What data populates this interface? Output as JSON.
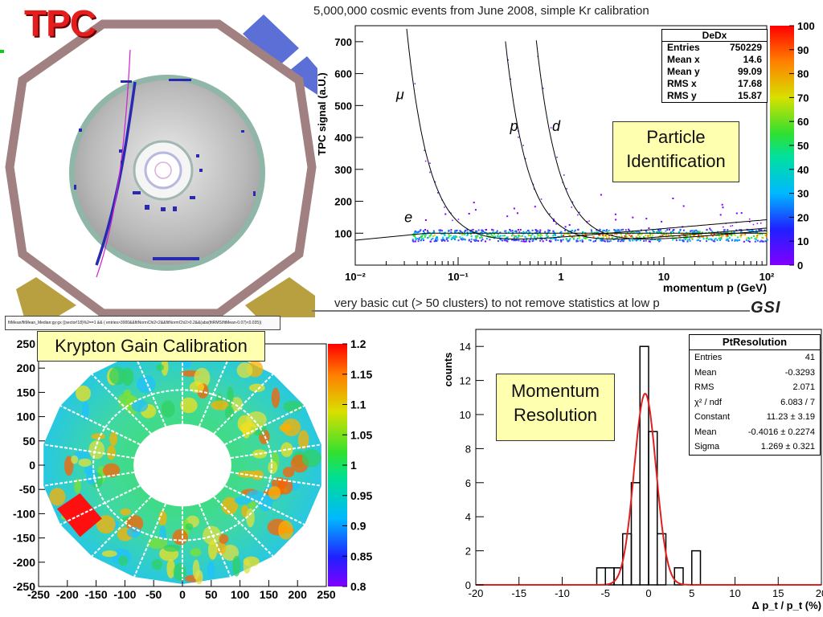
{
  "tpc_panel": {
    "title": "TPC"
  },
  "captions": {
    "top": "5,000,000 cosmic events from June 2008, simple Kr calibration",
    "bottom": "very basic cut (> 50 clusters) to not remove statistics at low p",
    "logo": "GSI"
  },
  "labels": {
    "particle_id": [
      "Particle",
      "Identification"
    ],
    "krypton": "Krypton Gain Calibration",
    "momentum_res": [
      "Momentum",
      "Resolution"
    ]
  },
  "dedx_stats": {
    "title": "DeDx",
    "rows": [
      {
        "k": "Entries",
        "v": "750229"
      },
      {
        "k": "Mean x",
        "v": "14.6"
      },
      {
        "k": "Mean y",
        "v": "99.09"
      },
      {
        "k": "RMS x",
        "v": "17.68"
      },
      {
        "k": "RMS y",
        "v": "15.87"
      }
    ]
  },
  "pt_stats": {
    "title": "PtResolution",
    "rows": [
      {
        "k": "Entries",
        "v": "41"
      },
      {
        "k": "Mean",
        "v": "-0.3293"
      },
      {
        "k": "RMS",
        "v": "2.071"
      },
      {
        "k": "χ² / ndf",
        "v": "6.083 / 7"
      },
      {
        "k": "Constant",
        "v": "11.23 ± 3.19"
      },
      {
        "k": "Mean",
        "v": "-0.4016 ± 0.2274"
      },
      {
        "k": "Sigma",
        "v": "1.269 ± 0.321"
      }
    ]
  },
  "kr_header_text": "fitMean/fitMean_Median:gy:gx {(sector!18)%2==1 && ( entries>3000&&fitNormChi2<2&&fitNormChi2>0.2&&(abs(fitRMS/fitMean-0.07)<0.035))",
  "chart_data": [
    {
      "type": "heatmap",
      "id": "dedx",
      "xlabel": "momentum p (GeV)",
      "ylabel": "TPC signal (a.U.)",
      "xscale": "log",
      "xlim": [
        0.01,
        100
      ],
      "ylim": [
        0,
        750
      ],
      "x_ticks": [
        "10⁻²",
        "10⁻¹",
        "1",
        "10",
        "10²"
      ],
      "y_ticks": [
        100,
        200,
        300,
        400,
        500,
        600,
        700
      ],
      "colorbar": {
        "ticks": [
          0,
          10,
          20,
          30,
          40,
          50,
          60,
          70,
          80,
          90,
          100
        ]
      },
      "curve_labels": [
        "μ",
        "p",
        "d",
        "e"
      ],
      "legend": "top-right"
    },
    {
      "type": "heatmap",
      "id": "krypton",
      "xlim": [
        -250,
        250
      ],
      "ylim": [
        -250,
        250
      ],
      "x_ticks": [
        "-250",
        "-200",
        "-150",
        "-100",
        "-50",
        "0",
        "50",
        "100",
        "150",
        "200",
        "250"
      ],
      "y_ticks": [
        "250",
        "200",
        "150",
        "100",
        "50",
        "0",
        "-50",
        "-100",
        "-150",
        "-200",
        "-250"
      ],
      "colorbar": {
        "ticks": [
          "0.8",
          "0.85",
          "0.9",
          "0.95",
          "1",
          "1.05",
          "1.1",
          "1.15",
          "1.2"
        ]
      }
    },
    {
      "type": "bar",
      "id": "pt_resolution",
      "title": "PtResolution",
      "xlabel": "Δ p_t / p_t (%)",
      "ylabel": "counts",
      "xlim": [
        -20,
        20
      ],
      "ylim": [
        0,
        15
      ],
      "x_ticks": [
        -20,
        -15,
        -10,
        -5,
        0,
        5,
        10,
        15,
        20
      ],
      "y_ticks": [
        0,
        2,
        4,
        6,
        8,
        10,
        12,
        14
      ],
      "bin_edges": [
        -6,
        -5,
        -4,
        -3,
        -2,
        -1,
        0,
        1,
        2,
        3,
        4,
        5,
        6
      ],
      "values": [
        1,
        1,
        1,
        3,
        6,
        14,
        9,
        3,
        0,
        1,
        0,
        2
      ],
      "fit": {
        "type": "gaussian",
        "constant": 11.23,
        "mean": -0.4016,
        "sigma": 1.269
      },
      "legend": "top-right"
    }
  ]
}
